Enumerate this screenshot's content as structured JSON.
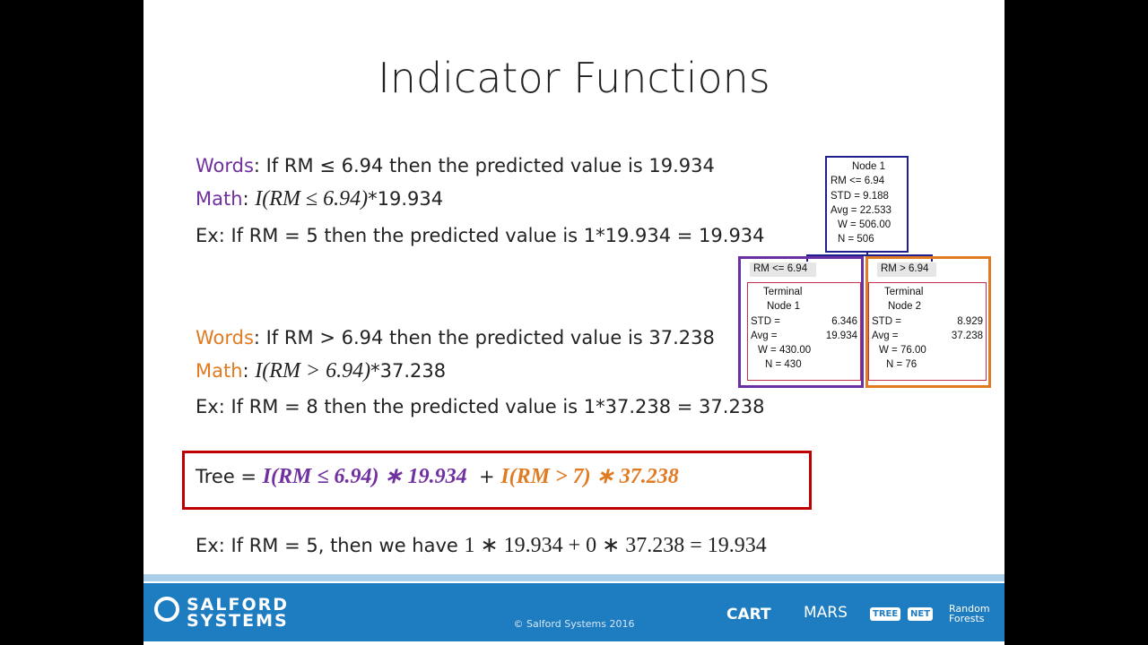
{
  "title": "Indicator Functions",
  "block1": {
    "words_label": "Words",
    "words_text": ": If RM ≤ 6.94 then the predicted value is 19.934",
    "math_label": "Math",
    "math_colon": ":",
    "math_expr": "I(RM ≤ 6.94)",
    "math_rest": "*19.934",
    "example": "Ex: If RM = 5 then the predicted value is 1*19.934 = 19.934"
  },
  "block2": {
    "words_label": "Words",
    "words_text": ": If RM > 6.94 then the predicted value is 37.238",
    "math_label": "Math",
    "math_colon": ":",
    "math_expr": "I(RM > 6.94)",
    "math_rest": "*37.238",
    "example": "Ex: If RM = 8 then the predicted value is 1*37.238 = 37.238"
  },
  "tree_formula": {
    "prefix": "Tree = ",
    "term1": "I(RM ≤ 6.94) ∗ 19.934",
    "plus": "+",
    "term2": "I(RM > 7) ∗ 37.238"
  },
  "final_example": {
    "text": "Ex: If RM = 5, then we have",
    "math": "1 ∗ 19.934 + 0 ∗ 37.238 = 19.934"
  },
  "tree_diagram": {
    "node1": {
      "lines": [
        "Node 1",
        "RM <= 6.94",
        "STD =   9.188",
        "Avg =  22.533",
        "W = 506.00",
        "N = 506"
      ]
    },
    "left": {
      "split": "RM <= 6.94",
      "title": [
        "Terminal",
        "Node 1"
      ],
      "rows": [
        [
          "STD =",
          "6.346"
        ],
        [
          "Avg =",
          "19.934"
        ]
      ],
      "lines": [
        "W = 430.00",
        "N = 430"
      ]
    },
    "right": {
      "split": "RM >  6.94",
      "title": [
        "Terminal",
        "Node 2"
      ],
      "rows": [
        [
          "STD =",
          "8.929"
        ],
        [
          "Avg =",
          "37.238"
        ]
      ],
      "lines": [
        "W = 76.00",
        "N = 76"
      ]
    }
  },
  "footer": {
    "brand": [
      "SALFORD",
      "SYSTEMS"
    ],
    "copyright": "© Salford Systems 2016",
    "logos": [
      "CART",
      "MARS",
      "TREE",
      "NET",
      "Random Forests"
    ]
  }
}
